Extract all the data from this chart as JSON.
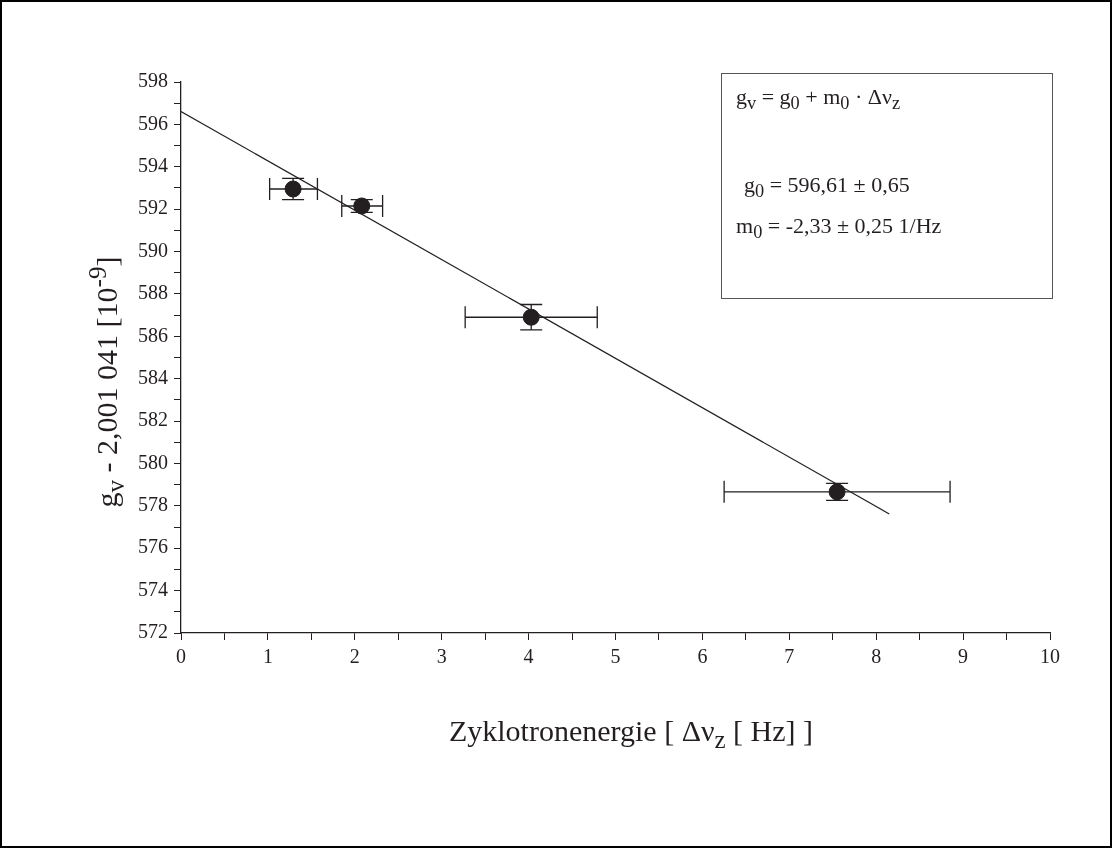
{
  "chart_data": {
    "type": "scatter",
    "xlabel": "Zyklotronenergie [ Δν$_{z}$ [ Hz] ]",
    "ylabel": "g$_{v}$ - 2,001 041 [10$^{-9}$]",
    "annotations": [
      "g$_{v}$ = g$_{0}$ + m$_{0}$ · Δν$_{z}$",
      "g$_{0}$ = 596,61 ± 0,65",
      "m$_{0}$ = -2,33 ± 0,25 1/Hz"
    ],
    "series": [
      {
        "color": "#231f20",
        "x": [
          1.29,
          2.08,
          4.03,
          7.55
        ],
        "values": [
          592.95,
          592.15,
          586.9,
          578.66
        ],
        "errors": [
          0.5,
          0.3,
          0.6,
          0.4
        ],
        "xerrors": [
          [
            1.02,
            1.57
          ],
          [
            1.85,
            2.32
          ],
          [
            3.27,
            4.79
          ],
          [
            6.25,
            8.85
          ]
        ],
        "marker": "circle"
      },
      {
        "type": "line",
        "color": "#231f20",
        "x": [
          0,
          8.15
        ],
        "values": [
          596.61,
          577.62
        ],
        "marker": "none",
        "line_style": "solid"
      }
    ],
    "xlim": [
      0,
      10
    ],
    "ylim": [
      572,
      598
    ],
    "xticks": [
      0,
      {
        "value": 0.5,
        "label": null
      },
      1,
      {
        "value": 1.5,
        "label": null
      },
      2,
      {
        "value": 2.5,
        "label": null
      },
      3,
      {
        "value": 3.5,
        "label": null
      },
      4,
      {
        "value": 4.5,
        "label": null
      },
      5,
      {
        "value": 5.5,
        "label": null
      },
      6,
      {
        "value": 6.5,
        "label": null
      },
      7,
      {
        "value": 7.5,
        "label": null
      },
      8,
      {
        "value": 8.5,
        "label": null
      },
      9,
      {
        "value": 9.5,
        "label": null
      },
      10
    ],
    "yticks": [
      572,
      {
        "value": 573,
        "label": null
      },
      574,
      {
        "value": 575,
        "label": null
      },
      576,
      {
        "value": 577,
        "label": null
      },
      578,
      {
        "value": 579,
        "label": null
      },
      580,
      {
        "value": 581,
        "label": null
      },
      582,
      {
        "value": 583,
        "label": null
      },
      584,
      {
        "value": 585,
        "label": null
      },
      586,
      {
        "value": 587,
        "label": null
      },
      588,
      {
        "value": 589,
        "label": null
      },
      590,
      {
        "value": 591,
        "label": null
      },
      592,
      {
        "value": 593,
        "label": null
      },
      594,
      {
        "value": 595,
        "label": null
      },
      596,
      {
        "value": 597,
        "label": null
      },
      598
    ],
    "grid": false,
    "legend": false
  }
}
